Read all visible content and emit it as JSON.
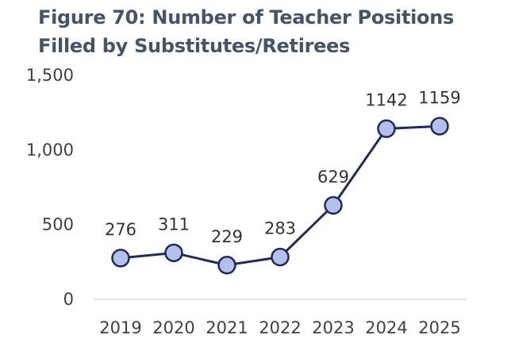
{
  "chart_data": {
    "type": "line",
    "title_lines": [
      "Figure 70: Number of Teacher Positions",
      "Filled by Substitutes/Retirees"
    ],
    "x": [
      "2019",
      "2020",
      "2021",
      "2022",
      "2023",
      "2024",
      "2025"
    ],
    "series": [
      {
        "values": [
          276,
          311,
          229,
          283,
          629,
          1142,
          1159
        ],
        "data_labels": [
          "276",
          "311",
          "229",
          "283",
          "629",
          "1142",
          "1159"
        ]
      }
    ],
    "y_ticks": [
      0,
      500,
      1000,
      1500
    ],
    "y_tick_labels": [
      "0",
      "500",
      "1,000",
      "1,500"
    ],
    "ylim": [
      0,
      1500
    ],
    "grid": false,
    "legend": "none",
    "colors": {
      "line": "#1f2a5c",
      "marker_fill": "#b4c0ea",
      "marker_stroke": "#1f2a5c",
      "axis": "#d9d9d9",
      "title": "#44546a"
    }
  }
}
